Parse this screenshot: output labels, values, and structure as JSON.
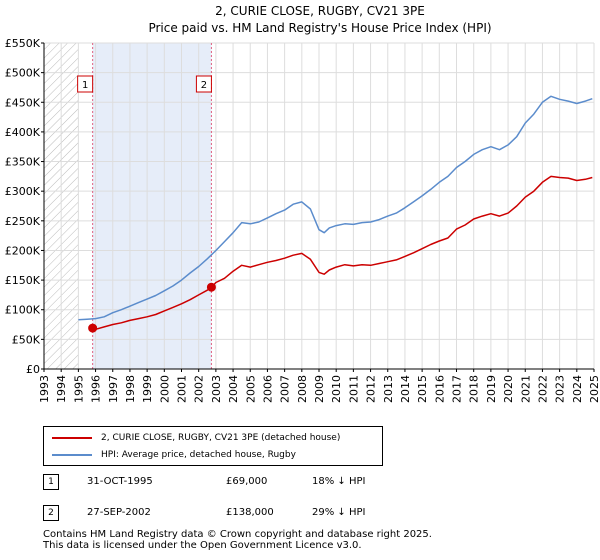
{
  "chart_data": {
    "type": "line",
    "title": "2, CURIE CLOSE, RUGBY, CV21 3PE",
    "subtitle": "Price paid vs. HM Land Registry's House Price Index (HPI)",
    "xlim": [
      1993,
      2025
    ],
    "ylim": [
      0,
      550000
    ],
    "x_ticks": [
      "1993",
      "1994",
      "1995",
      "1996",
      "1997",
      "1998",
      "1999",
      "2000",
      "2001",
      "2002",
      "2003",
      "2004",
      "2005",
      "2006",
      "2007",
      "2008",
      "2009",
      "2010",
      "2011",
      "2012",
      "2013",
      "2014",
      "2015",
      "2016",
      "2017",
      "2018",
      "2019",
      "2020",
      "2021",
      "2022",
      "2023",
      "2024",
      "2025"
    ],
    "y_ticks": [
      {
        "value": 0,
        "label": "£0"
      },
      {
        "value": 50000,
        "label": "£50K"
      },
      {
        "value": 100000,
        "label": "£100K"
      },
      {
        "value": 150000,
        "label": "£150K"
      },
      {
        "value": 200000,
        "label": "£200K"
      },
      {
        "value": 250000,
        "label": "£250K"
      },
      {
        "value": 300000,
        "label": "£300K"
      },
      {
        "value": 350000,
        "label": "£350K"
      },
      {
        "value": 400000,
        "label": "£400K"
      },
      {
        "value": 450000,
        "label": "£450K"
      },
      {
        "value": 500000,
        "label": "£500K"
      },
      {
        "value": 550000,
        "label": "£550K"
      }
    ],
    "grid": true,
    "hatched_ranges": [
      [
        1993,
        1995
      ]
    ],
    "shaded_ranges": [
      [
        1995.83,
        2002.74
      ]
    ],
    "series": [
      {
        "name": "2, CURIE CLOSE, RUGBY, CV21 3PE (detached house)",
        "color": "#cc0000",
        "x": [
          1995.83,
          1996.0,
          1996.5,
          1997.0,
          1997.5,
          1998.0,
          1998.5,
          1999.0,
          1999.5,
          2000.0,
          2000.5,
          2001.0,
          2001.5,
          2002.0,
          2002.5,
          2002.74,
          2003.0,
          2003.5,
          2004.0,
          2004.5,
          2005.0,
          2005.5,
          2006.0,
          2006.5,
          2007.0,
          2007.5,
          2008.0,
          2008.5,
          2009.0,
          2009.3,
          2009.6,
          2010.0,
          2010.5,
          2011.0,
          2011.5,
          2012.0,
          2012.5,
          2013.0,
          2013.5,
          2014.0,
          2014.5,
          2015.0,
          2015.5,
          2016.0,
          2016.5,
          2017.0,
          2017.5,
          2018.0,
          2018.5,
          2019.0,
          2019.5,
          2020.0,
          2020.5,
          2021.0,
          2021.5,
          2022.0,
          2022.5,
          2023.0,
          2023.5,
          2024.0,
          2024.5,
          2024.9
        ],
        "values": [
          69000,
          67000,
          71000,
          75000,
          78000,
          82000,
          85000,
          88000,
          92000,
          98000,
          104000,
          110000,
          117000,
          125000,
          133000,
          138000,
          146000,
          153000,
          165000,
          175000,
          172000,
          176000,
          180000,
          183000,
          187000,
          192000,
          195000,
          185000,
          163000,
          160000,
          167000,
          172000,
          176000,
          174000,
          176000,
          175000,
          178000,
          181000,
          184000,
          190000,
          196000,
          203000,
          210000,
          216000,
          221000,
          236000,
          243000,
          253000,
          258000,
          262000,
          258000,
          263000,
          275000,
          290000,
          300000,
          315000,
          325000,
          323000,
          322000,
          318000,
          320000,
          323000
        ]
      },
      {
        "name": "HPI: Average price, detached house, Rugby",
        "color": "#5b8ccc",
        "x": [
          1995.0,
          1995.5,
          1996.0,
          1996.5,
          1997.0,
          1997.5,
          1998.0,
          1998.5,
          1999.0,
          1999.5,
          2000.0,
          2000.5,
          2001.0,
          2001.5,
          2002.0,
          2002.5,
          2003.0,
          2003.5,
          2004.0,
          2004.5,
          2005.0,
          2005.5,
          2006.0,
          2006.5,
          2007.0,
          2007.5,
          2008.0,
          2008.5,
          2009.0,
          2009.3,
          2009.6,
          2010.0,
          2010.5,
          2011.0,
          2011.5,
          2012.0,
          2012.5,
          2013.0,
          2013.5,
          2014.0,
          2014.5,
          2015.0,
          2015.5,
          2016.0,
          2016.5,
          2017.0,
          2017.5,
          2018.0,
          2018.5,
          2019.0,
          2019.5,
          2020.0,
          2020.5,
          2021.0,
          2021.5,
          2022.0,
          2022.5,
          2023.0,
          2023.5,
          2024.0,
          2024.5,
          2024.9
        ],
        "values": [
          83000,
          84000,
          85000,
          88000,
          95000,
          100000,
          106000,
          112000,
          118000,
          124000,
          132000,
          140000,
          150000,
          162000,
          173000,
          186000,
          200000,
          215000,
          230000,
          247000,
          245000,
          248000,
          255000,
          262000,
          268000,
          278000,
          282000,
          270000,
          235000,
          230000,
          238000,
          242000,
          245000,
          244000,
          247000,
          248000,
          252000,
          258000,
          263000,
          272000,
          282000,
          292000,
          303000,
          315000,
          325000,
          340000,
          350000,
          362000,
          370000,
          375000,
          370000,
          378000,
          392000,
          415000,
          430000,
          450000,
          460000,
          455000,
          452000,
          448000,
          452000,
          456000
        ]
      }
    ],
    "sales": [
      {
        "id": "1",
        "x": 1995.83,
        "value": 69000
      },
      {
        "id": "2",
        "x": 2002.74,
        "value": 138000
      }
    ]
  },
  "legend": {
    "items": [
      {
        "label": "2, CURIE CLOSE, RUGBY, CV21 3PE (detached house)",
        "color": "#cc0000"
      },
      {
        "label": "HPI: Average price, detached house, Rugby",
        "color": "#5b8ccc"
      }
    ]
  },
  "sales_table": [
    {
      "id": "1",
      "date": "31-OCT-1995",
      "price": "£69,000",
      "hpi": "18% ↓ HPI"
    },
    {
      "id": "2",
      "date": "27-SEP-2002",
      "price": "£138,000",
      "hpi": "29% ↓ HPI"
    }
  ],
  "footer": {
    "line1": "Contains HM Land Registry data © Crown copyright and database right 2025.",
    "line2": "This data is licensed under the Open Government Licence v3.0."
  }
}
